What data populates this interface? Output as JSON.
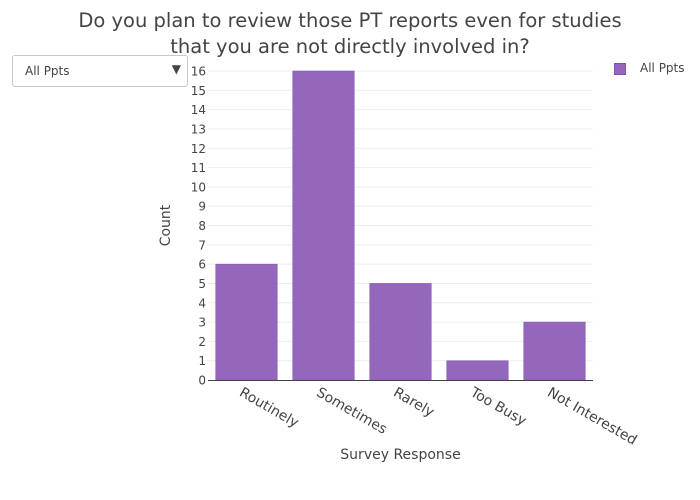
{
  "title_line1": "Do you plan to review those PT reports even for studies",
  "title_line2": "that you are not directly involved in?",
  "dropdown": {
    "selected": "All Ppts",
    "arrow": "▼"
  },
  "legend": {
    "label": "All Ppts"
  },
  "colors": {
    "bar": "#9467bd",
    "bar_edge": "#7a52b3",
    "grid": "#eeeeee",
    "axis": "#444444"
  },
  "chart_data": {
    "type": "bar",
    "title": "Do you plan to review those PT reports even for studies that you are not directly involved in?",
    "xlabel": "Survey Response",
    "ylabel": "Count",
    "categories": [
      "Routinely",
      "Sometimes",
      "Rarely",
      "Too Busy",
      "Not Interested"
    ],
    "series": [
      {
        "name": "All Ppts",
        "values": [
          6,
          16,
          5,
          1,
          3
        ]
      }
    ],
    "ylim": [
      0,
      16
    ],
    "yticks": [
      0,
      1,
      2,
      3,
      4,
      5,
      6,
      7,
      8,
      9,
      10,
      11,
      12,
      13,
      14,
      15,
      16
    ],
    "grid": true,
    "legend_position": "top-right"
  }
}
